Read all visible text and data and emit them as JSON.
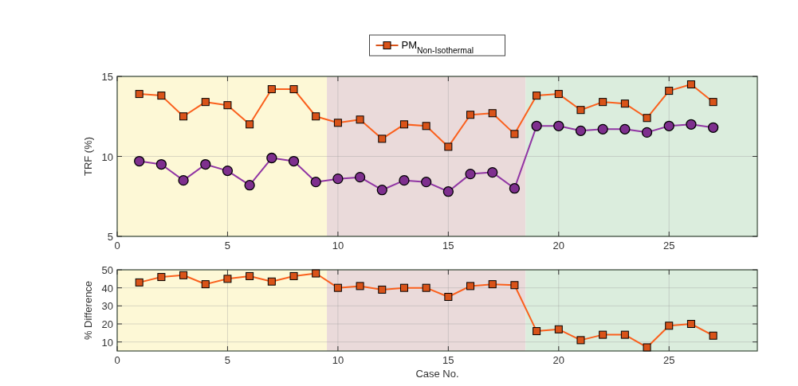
{
  "chart_data": [
    {
      "type": "line",
      "ylabel": "TRF (%)",
      "x": [
        1,
        2,
        3,
        4,
        5,
        6,
        7,
        8,
        9,
        10,
        11,
        12,
        13,
        14,
        15,
        16,
        17,
        18,
        19,
        20,
        21,
        22,
        23,
        24,
        25,
        26,
        27
      ],
      "series": [
        {
          "color": "#7e2f8e",
          "marker": "circle",
          "values": [
            9.7,
            9.5,
            8.5,
            9.5,
            9.1,
            8.2,
            9.9,
            9.7,
            8.4,
            8.6,
            8.7,
            7.9,
            8.5,
            8.4,
            7.8,
            8.9,
            9.0,
            8.0,
            11.9,
            11.9,
            11.6,
            11.7,
            11.7,
            11.5,
            11.9,
            12.0,
            11.8
          ]
        },
        {
          "name": "PM$_{Non-Isothermal}$",
          "color": "#d95319",
          "marker": "square",
          "values": [
            13.9,
            13.8,
            12.5,
            13.4,
            13.2,
            12.0,
            14.2,
            14.2,
            12.5,
            12.1,
            12.3,
            11.1,
            12.0,
            11.9,
            10.6,
            12.6,
            12.7,
            11.4,
            13.8,
            13.9,
            12.9,
            13.4,
            13.3,
            12.4,
            14.1,
            14.5,
            13.4
          ]
        }
      ],
      "xlim": [
        0,
        29
      ],
      "xticks": [
        0,
        5,
        10,
        15,
        20,
        25
      ],
      "ylim": [
        5,
        15
      ],
      "yticks": [
        5,
        10,
        15
      ],
      "grid": true,
      "legend": "top",
      "bands": [
        {
          "axis": "x",
          "from": 0,
          "to": 9.5,
          "color": "#fdf8d6"
        },
        {
          "axis": "x",
          "from": 9.5,
          "to": 18.5,
          "color": "#eadada"
        },
        {
          "axis": "x",
          "from": 18.5,
          "to": 29,
          "color": "#dbeddd"
        }
      ]
    },
    {
      "type": "line",
      "ylabel": "% Difference",
      "xlabel": "Case No.",
      "x": [
        1,
        2,
        3,
        4,
        5,
        6,
        7,
        8,
        9,
        10,
        11,
        12,
        13,
        14,
        15,
        16,
        17,
        18,
        19,
        20,
        21,
        22,
        23,
        24,
        25,
        26,
        27
      ],
      "series": [
        {
          "color": "#d95319",
          "marker": "square",
          "values": [
            43,
            46,
            47,
            42,
            45,
            46.5,
            43.5,
            46.5,
            48,
            40,
            41,
            39,
            40,
            40,
            35,
            41,
            42,
            41.5,
            16,
            17,
            11,
            14,
            14,
            7,
            19,
            20,
            13.5
          ]
        }
      ],
      "xlim": [
        0,
        29
      ],
      "xticks": [
        0,
        5,
        10,
        15,
        20,
        25
      ],
      "ylim": [
        5,
        50
      ],
      "yticks": [
        10,
        20,
        30,
        40,
        50
      ],
      "grid": true,
      "bands": [
        {
          "axis": "x",
          "from": 0,
          "to": 9.5,
          "color": "#fdf8d6"
        },
        {
          "axis": "x",
          "from": 9.5,
          "to": 18.5,
          "color": "#eadada"
        },
        {
          "axis": "x",
          "from": 18.5,
          "to": 29,
          "color": "#dbeddd"
        }
      ]
    }
  ]
}
